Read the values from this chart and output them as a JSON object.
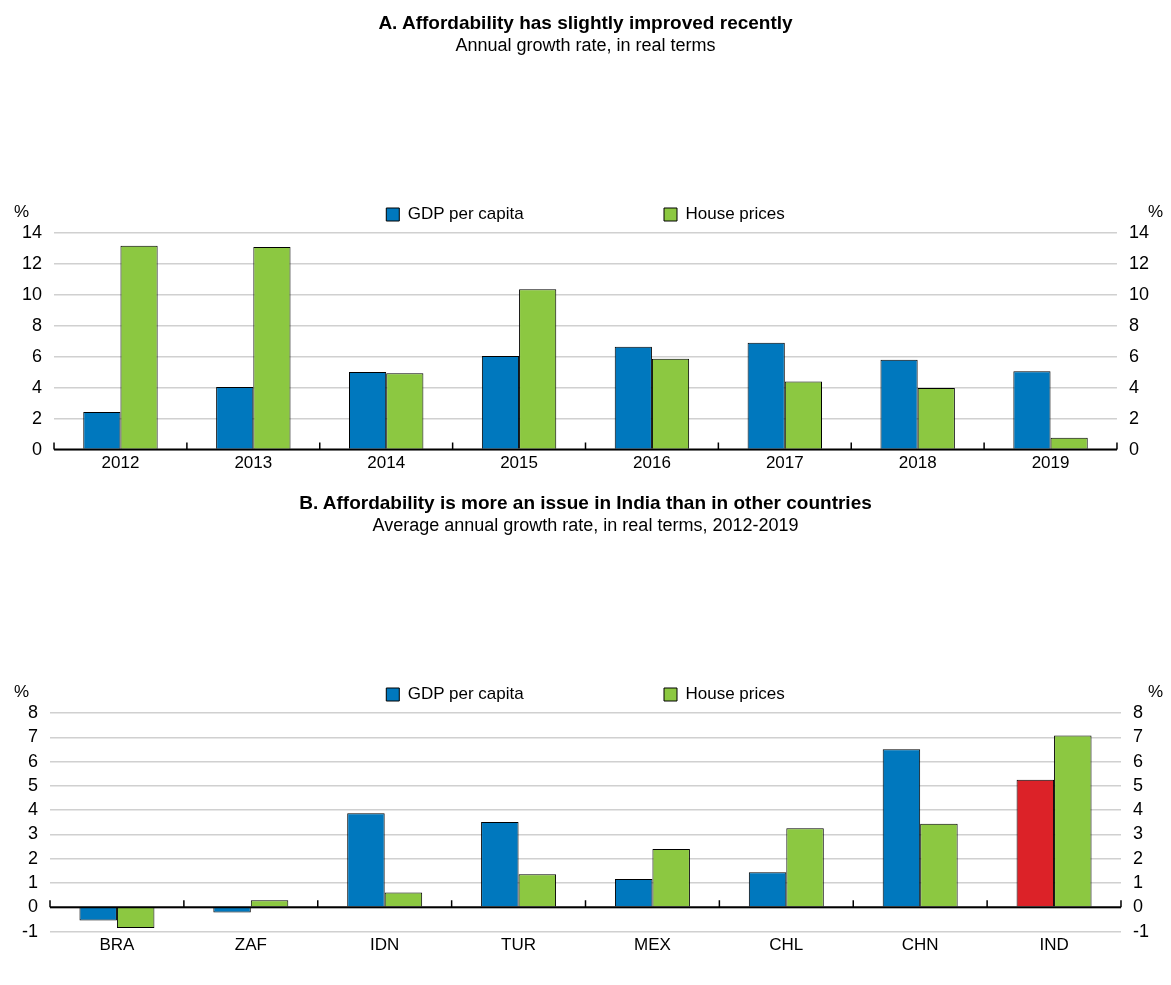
{
  "chart_data": [
    {
      "type": "bar",
      "title": "A. Affordability has slightly improved recently",
      "subtitle": "Annual growth rate, in real terms",
      "ylabel": "%",
      "y2label": "%",
      "categories": [
        "2012",
        "2013",
        "2014",
        "2015",
        "2016",
        "2017",
        "2018",
        "2019"
      ],
      "series": [
        {
          "name": "GDP per capita",
          "color": "#0078be",
          "values": [
            2.43,
            4.04,
            5.01,
            6.05,
            6.65,
            6.91,
            5.81,
            5.06
          ]
        },
        {
          "name": "House prices",
          "color": "#8cc841",
          "values": [
            13.17,
            13.1,
            4.93,
            10.37,
            5.87,
            4.4,
            3.98,
            0.77
          ]
        }
      ],
      "ylim": [
        0,
        14
      ],
      "yticks": [
        0,
        2,
        4,
        6,
        8,
        10,
        12,
        14
      ],
      "y2lim": [
        0,
        14
      ],
      "y2ticks": [
        0,
        2,
        4,
        6,
        8,
        10,
        12,
        14
      ],
      "grid": "y",
      "legend": "top"
    },
    {
      "type": "bar",
      "title": "B. Affordability is more an issue in India than in other countries",
      "subtitle": "Average annual growth rate, in real terms, 2012-2019",
      "ylabel": "%",
      "y2label": "%",
      "categories": [
        "BRA",
        "ZAF",
        "IDN",
        "TUR",
        "MEX",
        "CHL",
        "CHN",
        "IND"
      ],
      "series": [
        {
          "name": "GDP per capita",
          "color": "#0078be",
          "colors": [
            "#0078be",
            "#0078be",
            "#0078be",
            "#0078be",
            "#0078be",
            "#0078be",
            "#0078be",
            "#dc2228"
          ],
          "values": [
            -0.54,
            -0.21,
            3.87,
            3.51,
            1.17,
            1.44,
            6.51,
            5.25
          ]
        },
        {
          "name": "House prices",
          "color": "#8cc841",
          "values": [
            -0.85,
            0.29,
            0.61,
            1.36,
            2.4,
            3.26,
            3.44,
            7.07
          ]
        }
      ],
      "ylim": [
        -1,
        8
      ],
      "yticks": [
        -1,
        0,
        1,
        2,
        3,
        4,
        5,
        6,
        7,
        8
      ],
      "y2lim": [
        -1,
        8
      ],
      "y2ticks": [
        -1,
        0,
        1,
        2,
        3,
        4,
        5,
        6,
        7,
        8
      ],
      "grid": "y",
      "legend": "top"
    }
  ]
}
